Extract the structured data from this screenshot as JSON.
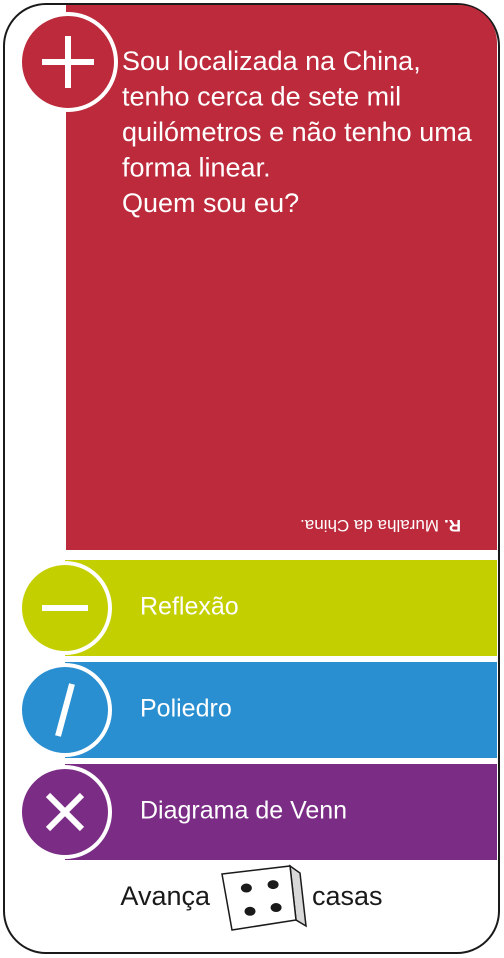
{
  "card": {
    "question_lines": [
      "Sou localizada na China,",
      "tenho cerca de sete mil",
      "quilómetros e não tenho uma",
      "forma linear.",
      "Quem sou eu?"
    ],
    "answer_label": "R.",
    "answer": "Muralha da China.",
    "options": [
      "Reflexão",
      "Poliedro",
      "Diagrama de Venn"
    ],
    "footer": {
      "before": "Avança",
      "after": "casas",
      "dice_value": 4
    }
  }
}
